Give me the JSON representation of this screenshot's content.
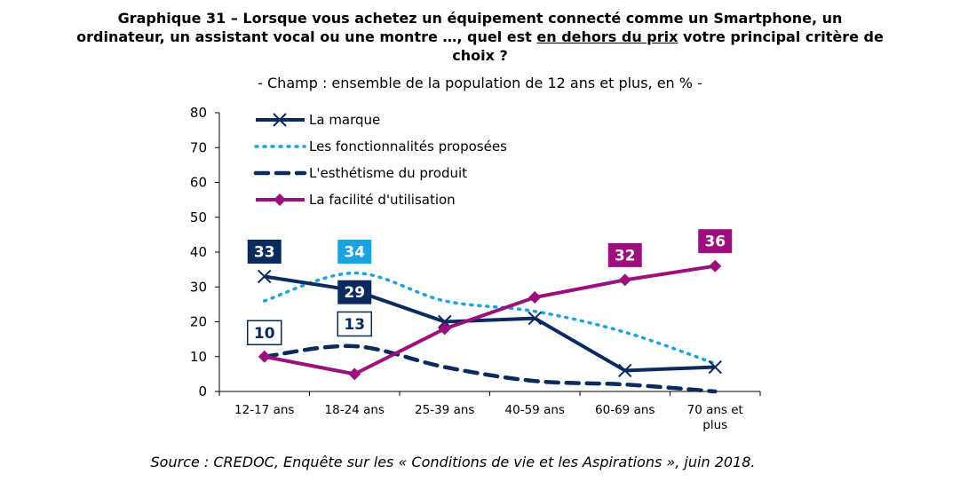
{
  "title": {
    "line1": "Graphique 31 – Lorsque vous achetez un équipement connecté comme un Smartphone, un",
    "line2_pre": "ordinateur, un assistant vocal ou une montre …, quel est ",
    "line2_underlined": "en dehors du prix",
    "line2_post": " votre principal critère de",
    "line3": "choix ?"
  },
  "subtitle": "- Champ : ensemble de la population de 12 ans et plus, en % -",
  "source": "Source : CREDOC, Enquête sur les « Conditions de vie et les Aspirations », juin 2018.",
  "chart_data": {
    "type": "line",
    "title": "Graphique 31",
    "xlabel": "",
    "ylabel": "%",
    "ylim": [
      0,
      80
    ],
    "yticks": [
      0,
      10,
      20,
      30,
      40,
      50,
      60,
      70,
      80
    ],
    "grid": false,
    "legend_position": "top-left",
    "categories": [
      "12-17 ans",
      "18-24 ans",
      "25-39 ans",
      "40-59 ans",
      "60-69 ans",
      "70 ans et plus"
    ],
    "category_lines": [
      [
        "12-17 ans"
      ],
      [
        "18-24 ans"
      ],
      [
        "25-39 ans"
      ],
      [
        "40-59 ans"
      ],
      [
        "60-69 ans"
      ],
      [
        "70 ans et",
        "plus"
      ]
    ],
    "series": [
      {
        "name": "La marque",
        "color": "#0b2a5e",
        "style": "solid",
        "marker": "x",
        "values": [
          33,
          29,
          20,
          21,
          6,
          7
        ]
      },
      {
        "name": "Les fonctionnalités proposées",
        "color": "#1ba3e0",
        "style": "dotted",
        "marker": "none",
        "values": [
          26,
          34,
          26,
          23,
          17,
          8
        ]
      },
      {
        "name": "L'esthétisme du produit",
        "color": "#0b2a5e",
        "style": "dashed",
        "marker": "none",
        "values": [
          10,
          13,
          7,
          3,
          2,
          0
        ]
      },
      {
        "name": "La facilité d'utilisation",
        "color": "#9c0f7d",
        "style": "solid",
        "marker": "diamond",
        "values": [
          10,
          5,
          18,
          27,
          32,
          36
        ]
      }
    ],
    "annotations": [
      {
        "series": "La marque",
        "category": "12-17 ans",
        "text": "33",
        "style": "filled",
        "bg": "#0b2a5e",
        "fg": "#ffffff"
      },
      {
        "series": "La marque",
        "category": "18-24 ans",
        "text": "29",
        "style": "filled",
        "bg": "#0b2a5e",
        "fg": "#ffffff"
      },
      {
        "series": "Les fonctionnalités proposées",
        "category": "18-24 ans",
        "text": "34",
        "style": "filled",
        "bg": "#1ba3e0",
        "fg": "#ffffff"
      },
      {
        "series": "L'esthétisme du produit",
        "category": "12-17 ans",
        "text": "10",
        "style": "outlined",
        "bg": "#ffffff",
        "fg": "#0b2a5e"
      },
      {
        "series": "L'esthétisme du produit",
        "category": "18-24 ans",
        "text": "13",
        "style": "outlined",
        "bg": "#ffffff",
        "fg": "#0b2a5e"
      },
      {
        "series": "La facilité d'utilisation",
        "category": "60-69 ans",
        "text": "32",
        "style": "filled",
        "bg": "#9c0f7d",
        "fg": "#ffffff"
      },
      {
        "series": "La facilité d'utilisation",
        "category": "70 ans et plus",
        "text": "36",
        "style": "filled",
        "bg": "#9c0f7d",
        "fg": "#ffffff"
      }
    ]
  }
}
